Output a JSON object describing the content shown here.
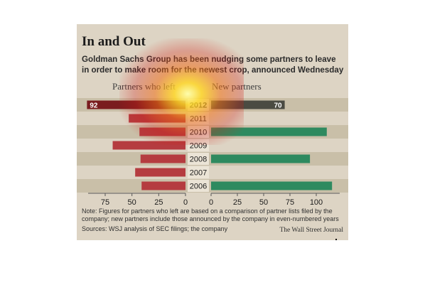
{
  "headline": "In and Out",
  "subhead": "Goldman Sachs Group has been nudging some partners to leave in order to make room for the newest crop, announced Wednesday",
  "note": "Note: Figures for partners who left are based on a comparison of partner lists filed by the company; new partners include those announced by the company in even-numbered years",
  "sources": "Sources: WSJ analysis of SEC filings; the company",
  "credit": "The Wall Street Journal",
  "colors": {
    "left_bar": "#b53c40",
    "left_bar_highlight": "#7a1c1f",
    "right_bar": "#2e8a5f",
    "right_bar_highlight": "#4b4b42",
    "year_box": "#ebe4d6",
    "band": "#c9bfa8"
  },
  "chart_data": {
    "type": "bar",
    "orientation": "horizontal",
    "layout": "back-to-back",
    "categories": [
      "2012",
      "2011",
      "2010",
      "2009",
      "2008",
      "2007",
      "2006"
    ],
    "series": [
      {
        "name": "Partners who left",
        "values": [
          92,
          53,
          43,
          68,
          42,
          47,
          41
        ],
        "data_labels": [
          "92",
          "",
          "",
          "",
          "",
          "",
          ""
        ],
        "axis_ticks": [
          "75",
          "50",
          "25",
          "0"
        ],
        "xlim": [
          0,
          100
        ]
      },
      {
        "name": "New partners",
        "values": [
          70,
          null,
          110,
          null,
          94,
          null,
          115
        ],
        "data_labels": [
          "70",
          "",
          "",
          "",
          "",
          "",
          ""
        ],
        "axis_ticks": [
          "0",
          "25",
          "50",
          "75",
          "100"
        ],
        "xlim": [
          0,
          125
        ]
      }
    ],
    "highlight_category": "2012",
    "grid": false
  }
}
